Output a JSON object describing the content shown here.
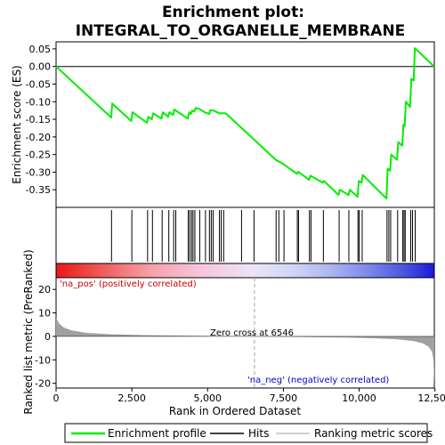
{
  "chart_data": {
    "type": "line",
    "title_line1": "Enrichment plot:",
    "title_line2": "INTEGRAL_TO_ORGANELLE_MEMBRANE",
    "top_panel": {
      "ylabel": "Enrichment score (ES)",
      "ylim": [
        -0.4,
        0.07
      ],
      "yticks": [
        "0.05",
        "0.00",
        "-0.05",
        "-0.10",
        "-0.15",
        "-0.20",
        "-0.25",
        "-0.30",
        "-0.35"
      ],
      "ytick_values": [
        0.05,
        0.0,
        -0.05,
        -0.1,
        -0.15,
        -0.2,
        -0.25,
        -0.3,
        -0.35
      ],
      "series_name": "Enrichment profile",
      "series_color": "#00ee00",
      "es_points": [
        [
          0,
          0.0
        ],
        [
          1820,
          -0.145
        ],
        [
          1850,
          -0.105
        ],
        [
          2480,
          -0.155
        ],
        [
          2520,
          -0.13
        ],
        [
          3000,
          -0.16
        ],
        [
          3040,
          -0.143
        ],
        [
          3160,
          -0.15
        ],
        [
          3200,
          -0.133
        ],
        [
          3480,
          -0.148
        ],
        [
          3520,
          -0.13
        ],
        [
          3700,
          -0.143
        ],
        [
          3740,
          -0.13
        ],
        [
          3860,
          -0.138
        ],
        [
          3900,
          -0.122
        ],
        [
          4350,
          -0.148
        ],
        [
          4390,
          -0.13
        ],
        [
          4450,
          -0.135
        ],
        [
          4490,
          -0.125
        ],
        [
          4560,
          -0.128
        ],
        [
          4600,
          -0.118
        ],
        [
          4720,
          -0.12
        ],
        [
          4900,
          -0.13
        ],
        [
          5050,
          -0.135
        ],
        [
          5090,
          -0.124
        ],
        [
          5200,
          -0.125
        ],
        [
          5380,
          -0.133
        ],
        [
          5600,
          -0.133
        ],
        [
          7250,
          -0.265
        ],
        [
          7500,
          -0.277
        ],
        [
          7950,
          -0.305
        ],
        [
          7990,
          -0.299
        ],
        [
          8350,
          -0.322
        ],
        [
          8390,
          -0.31
        ],
        [
          8800,
          -0.33
        ],
        [
          8840,
          -0.325
        ],
        [
          9320,
          -0.365
        ],
        [
          9360,
          -0.35
        ],
        [
          9650,
          -0.365
        ],
        [
          9690,
          -0.35
        ],
        [
          9950,
          -0.37
        ],
        [
          9990,
          -0.325
        ],
        [
          10080,
          -0.33
        ],
        [
          10120,
          -0.308
        ],
        [
          10900,
          -0.375
        ],
        [
          10940,
          -0.29
        ],
        [
          11020,
          -0.296
        ],
        [
          11060,
          -0.25
        ],
        [
          11250,
          -0.265
        ],
        [
          11290,
          -0.215
        ],
        [
          11420,
          -0.225
        ],
        [
          11460,
          -0.165
        ],
        [
          11500,
          -0.17
        ],
        [
          11540,
          -0.1
        ],
        [
          11680,
          -0.115
        ],
        [
          11720,
          -0.035
        ],
        [
          11800,
          -0.04
        ],
        [
          11840,
          0.052
        ],
        [
          12470,
          0.0
        ]
      ],
      "hits": [
        1830,
        2500,
        3020,
        3180,
        3500,
        3720,
        3880,
        3950,
        4360,
        4410,
        4470,
        4520,
        4580,
        4740,
        4930,
        5060,
        5120,
        5180,
        5390,
        5450,
        5530,
        6120,
        6530,
        7260,
        7350,
        7520,
        7960,
        8000,
        8360,
        8410,
        8820,
        9340,
        9660,
        9960,
        10000,
        10100,
        10920,
        10980,
        11040,
        11270,
        11440,
        11480,
        11520,
        11700,
        11760,
        11850
      ]
    },
    "gradient_bar": {
      "label_pos": "'na_pos' (positively correlated)",
      "label_neg": "'na_neg' (negatively correlated)"
    },
    "bottom_panel": {
      "ylabel": "Ranked list metric (PreRanked)",
      "ylim": [
        -22,
        25
      ],
      "yticks": [
        "20",
        "10",
        "0",
        "-10",
        "-20"
      ],
      "ytick_values": [
        20,
        10,
        0,
        -10,
        -20
      ],
      "zero_cross_label": "Zero cross at 6546",
      "zero_cross": 6546,
      "metric_points": [
        [
          0,
          8
        ],
        [
          100,
          5.5
        ],
        [
          250,
          3.8
        ],
        [
          500,
          2.6
        ],
        [
          1000,
          1.5
        ],
        [
          1800,
          0.9
        ],
        [
          3000,
          0.5
        ],
        [
          4500,
          0.25
        ],
        [
          6546,
          0
        ],
        [
          8000,
          -0.25
        ],
        [
          9500,
          -0.5
        ],
        [
          10500,
          -0.8
        ],
        [
          11200,
          -1.2
        ],
        [
          11800,
          -2
        ],
        [
          12100,
          -3
        ],
        [
          12300,
          -4.5
        ],
        [
          12400,
          -6.5
        ],
        [
          12450,
          -10
        ],
        [
          12480,
          -21
        ]
      ]
    },
    "xlabel": "Rank in Ordered Dataset",
    "xlim": [
      0,
      12480
    ],
    "xticks": [
      "0",
      "2,500",
      "5,000",
      "7,500",
      "10,000",
      "12,500"
    ],
    "xtick_values": [
      0,
      2500,
      5000,
      7500,
      10000,
      12500
    ],
    "legend": {
      "entries": [
        "Enrichment profile",
        "Hits",
        "Ranking metric scores"
      ],
      "colors": [
        "#00ee00",
        "#000000",
        "#c0c0c0"
      ]
    },
    "colors": {
      "pos_label": "#cc0000",
      "neg_label": "#0000cc",
      "zero_line": "#a0a0a0",
      "metric_fill": "#a0a0a0"
    }
  }
}
